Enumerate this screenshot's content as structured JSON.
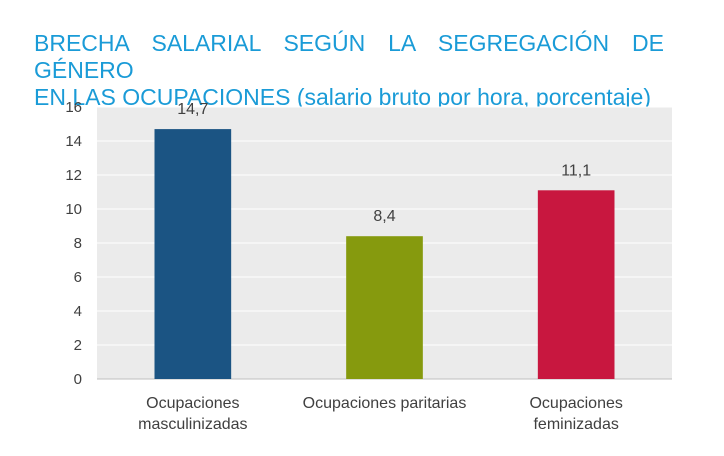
{
  "chart_data": {
    "type": "bar",
    "title_lines": [
      "BRECHA SALARIAL SEGÚN LA SEGREGACIÓN DE GÉNERO",
      "EN LAS OCUPACIONES (salario bruto por hora, porcentaje)"
    ],
    "categories": [
      [
        "Ocupaciones",
        "masculinizadas"
      ],
      [
        "Ocupaciones paritarias"
      ],
      [
        "Ocupaciones",
        "feminizadas"
      ]
    ],
    "values": [
      14.7,
      8.4,
      11.1
    ],
    "value_labels": [
      "14,7",
      "8,4",
      "11,1"
    ],
    "colors": [
      "#1b5483",
      "#869a0e",
      "#c8173f"
    ],
    "ylim": [
      0,
      16
    ],
    "yticks": [
      0,
      2,
      4,
      6,
      8,
      10,
      12,
      14,
      16
    ],
    "grid": true,
    "legend": "none",
    "xlabel": "",
    "ylabel": "",
    "plot_background": "#ebebeb",
    "title_color": "#1a9bd7"
  }
}
